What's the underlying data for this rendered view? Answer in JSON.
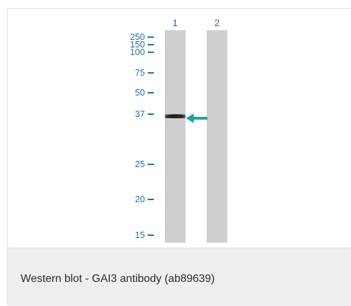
{
  "figure": {
    "lanes": [
      {
        "number": "1",
        "band_kda": 35
      },
      {
        "number": "2"
      }
    ],
    "markers": [
      "250",
      "150",
      "100",
      "75",
      "50",
      "37",
      "25",
      "20",
      "15"
    ],
    "arrow_color": "#1aa59a",
    "marker_color": "#1e6fa3"
  },
  "caption": "Western blot - GAI3 antibody (ab89639)"
}
